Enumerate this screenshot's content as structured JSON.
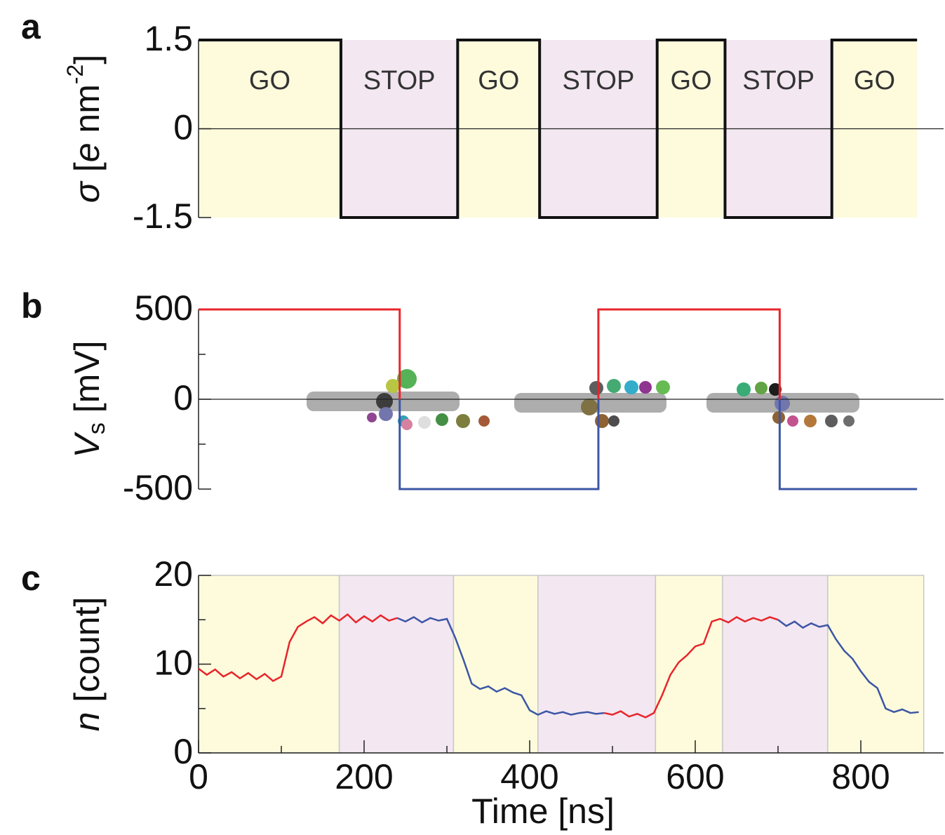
{
  "chart_data": [
    {
      "type": "line",
      "panel": "a",
      "ylabel": {
        "symbol": "σ",
        "open": " [",
        "e": "e",
        "unit": " nm",
        "exp": "-2",
        "close": "]"
      },
      "xlim": [
        0,
        900
      ],
      "ylim": [
        -1.5,
        1.5
      ],
      "yticks": [
        1.5,
        0,
        -1.5
      ],
      "zero_line": true,
      "region_colors": {
        "GO": "#fdfbdc",
        "STOP": "#f3e7f1"
      },
      "regions": [
        {
          "label": "GO",
          "start": 0,
          "end": 172
        },
        {
          "label": "STOP",
          "start": 172,
          "end": 313
        },
        {
          "label": "GO",
          "start": 313,
          "end": 412
        },
        {
          "label": "STOP",
          "start": 412,
          "end": 554
        },
        {
          "label": "GO",
          "start": 554,
          "end": 636
        },
        {
          "label": "STOP",
          "start": 636,
          "end": 765
        },
        {
          "label": "GO",
          "start": 765,
          "end": 868
        }
      ],
      "series": [
        {
          "color": "#111111",
          "width": 4,
          "x": [
            0,
            172,
            172,
            313,
            313,
            412,
            412,
            554,
            554,
            636,
            636,
            765,
            765,
            868
          ],
          "values": [
            1.5,
            1.5,
            -1.5,
            -1.5,
            1.5,
            1.5,
            -1.5,
            -1.5,
            1.5,
            1.5,
            -1.5,
            -1.5,
            1.5,
            1.5
          ]
        }
      ]
    },
    {
      "type": "line",
      "panel": "b",
      "ylabel": {
        "symbol": "V",
        "sub": "s",
        "unit": " [mV]"
      },
      "xlim": [
        0,
        900
      ],
      "ylim": [
        -500,
        500
      ],
      "yticks": [
        500,
        0,
        -500
      ],
      "yminorticks": [
        250,
        -250
      ],
      "zero_line": true,
      "series": [
        {
          "color": "#e8252a",
          "width": 3,
          "x": [
            0,
            243,
            243,
            483,
            483,
            483,
            702,
            702
          ],
          "values": [
            500,
            500,
            0,
            null,
            0,
            500,
            500,
            0
          ]
        },
        {
          "color": "#3c56a6",
          "width": 3,
          "x": [
            243,
            243,
            483,
            483,
            702,
            702,
            702,
            868
          ],
          "values": [
            0,
            -500,
            -500,
            0,
            null,
            0,
            -500,
            -500
          ]
        }
      ]
    },
    {
      "type": "line",
      "panel": "c",
      "ylabel": {
        "symbol": "n",
        "unit": " [count]"
      },
      "xlabel": "Time [ns]",
      "xlim": [
        0,
        900
      ],
      "ylim": [
        0,
        20
      ],
      "yticks": [
        20,
        10,
        0
      ],
      "yminorticks": [
        15,
        5
      ],
      "xticks": [
        0,
        200,
        400,
        600,
        800
      ],
      "xminorticks": [
        100,
        300,
        500,
        700
      ],
      "regions": [
        {
          "start": 0,
          "end": 170,
          "color": "#fdfbdc"
        },
        {
          "start": 170,
          "end": 308,
          "color": "#f3e7f1"
        },
        {
          "start": 308,
          "end": 410,
          "color": "#fdfbdc"
        },
        {
          "start": 410,
          "end": 552,
          "color": "#f3e7f1"
        },
        {
          "start": 552,
          "end": 633,
          "color": "#fdfbdc"
        },
        {
          "start": 633,
          "end": 760,
          "color": "#f3e7f1"
        },
        {
          "start": 760,
          "end": 876,
          "color": "#fdfbdc"
        }
      ],
      "x": [
        0,
        10,
        20,
        30,
        40,
        50,
        60,
        70,
        80,
        90,
        100,
        110,
        120,
        130,
        140,
        150,
        160,
        170,
        180,
        190,
        200,
        210,
        220,
        230,
        240,
        250,
        260,
        270,
        280,
        290,
        300,
        310,
        320,
        330,
        340,
        350,
        360,
        370,
        380,
        390,
        400,
        410,
        420,
        430,
        440,
        450,
        460,
        470,
        480,
        490,
        500,
        510,
        520,
        530,
        540,
        550,
        560,
        570,
        580,
        590,
        600,
        610,
        620,
        630,
        640,
        650,
        660,
        670,
        680,
        690,
        700,
        710,
        720,
        730,
        740,
        750,
        760,
        770,
        780,
        790,
        800,
        810,
        820,
        830,
        840,
        850,
        860,
        870
      ],
      "series": [
        {
          "color": "#e8252a",
          "width": 2.5,
          "values": [
            9.5,
            8.8,
            9.4,
            8.6,
            9.1,
            8.4,
            9.0,
            8.3,
            8.9,
            8.1,
            8.6,
            12.5,
            14.2,
            14.8,
            15.3,
            14.6,
            15.5,
            14.9,
            15.6,
            14.7,
            15.4,
            14.8,
            15.5,
            14.9,
            15.2,
            null,
            null,
            null,
            null,
            null,
            null,
            null,
            null,
            null,
            null,
            null,
            null,
            null,
            null,
            null,
            null,
            null,
            null,
            null,
            null,
            null,
            null,
            null,
            null,
            4.5,
            4.3,
            4.7,
            4.1,
            4.4,
            4.0,
            4.5,
            6.5,
            8.8,
            10.2,
            11.0,
            12.0,
            12.3,
            14.8,
            15.1,
            14.7,
            15.3,
            14.8,
            15.2,
            14.9,
            15.3,
            15.0,
            null,
            null,
            null,
            null,
            null,
            null,
            null,
            null,
            null,
            null,
            null,
            null,
            null,
            null,
            null,
            null,
            null
          ]
        },
        {
          "color": "#3c56a6",
          "width": 2.5,
          "values": [
            null,
            null,
            null,
            null,
            null,
            null,
            null,
            null,
            null,
            null,
            null,
            null,
            null,
            null,
            null,
            null,
            null,
            null,
            null,
            null,
            null,
            null,
            null,
            null,
            15.2,
            14.8,
            15.3,
            14.7,
            15.2,
            14.9,
            15.1,
            13.0,
            10.5,
            7.8,
            7.2,
            7.5,
            6.9,
            7.3,
            6.8,
            6.5,
            4.8,
            4.3,
            4.7,
            4.4,
            4.6,
            4.3,
            4.5,
            4.6,
            4.4,
            4.5,
            null,
            null,
            null,
            null,
            null,
            null,
            null,
            null,
            null,
            null,
            null,
            null,
            null,
            null,
            null,
            null,
            null,
            null,
            null,
            null,
            15.0,
            14.3,
            14.8,
            14.1,
            14.6,
            14.2,
            14.4,
            12.8,
            11.5,
            10.6,
            9.2,
            8.0,
            7.3,
            5.0,
            4.6,
            4.9,
            4.5,
            4.6
          ]
        }
      ]
    }
  ]
}
